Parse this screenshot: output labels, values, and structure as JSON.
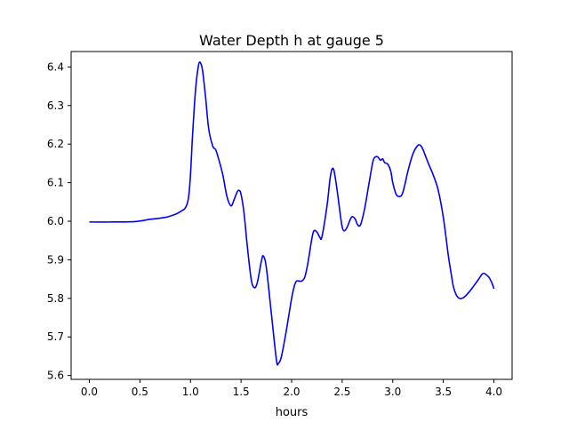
{
  "chart_data": {
    "type": "line",
    "title": "Water Depth h at gauge 5",
    "xlabel": "hours",
    "ylabel": "",
    "xlim": [
      -0.18,
      4.18
    ],
    "ylim": [
      5.59,
      6.44
    ],
    "grid": false,
    "legend": "none",
    "x_ticks": [
      {
        "value": 0.0,
        "label": "0.0"
      },
      {
        "value": 0.5,
        "label": "0.5"
      },
      {
        "value": 1.0,
        "label": "1.0"
      },
      {
        "value": 1.5,
        "label": "1.5"
      },
      {
        "value": 2.0,
        "label": "2.0"
      },
      {
        "value": 2.5,
        "label": "2.5"
      },
      {
        "value": 3.0,
        "label": "3.0"
      },
      {
        "value": 3.5,
        "label": "3.5"
      },
      {
        "value": 4.0,
        "label": "4.0"
      }
    ],
    "y_ticks": [
      {
        "value": 5.6,
        "label": "5.6"
      },
      {
        "value": 5.7,
        "label": "5.7"
      },
      {
        "value": 5.8,
        "label": "5.8"
      },
      {
        "value": 5.9,
        "label": "5.9"
      },
      {
        "value": 6.0,
        "label": "6.0"
      },
      {
        "value": 6.1,
        "label": "6.1"
      },
      {
        "value": 6.2,
        "label": "6.2"
      },
      {
        "value": 6.3,
        "label": "6.3"
      },
      {
        "value": 6.4,
        "label": "6.4"
      }
    ],
    "series": [
      {
        "color": "#0000ff",
        "x": [
          0.0,
          0.2,
          0.45,
          0.6,
          0.75,
          0.85,
          0.9,
          0.95,
          0.98,
          1.0,
          1.02,
          1.05,
          1.08,
          1.1,
          1.12,
          1.15,
          1.18,
          1.22,
          1.25,
          1.28,
          1.32,
          1.36,
          1.4,
          1.43,
          1.46,
          1.48,
          1.5,
          1.53,
          1.56,
          1.6,
          1.63,
          1.66,
          1.7,
          1.72,
          1.75,
          1.8,
          1.85,
          1.87,
          1.9,
          1.95,
          2.0,
          2.03,
          2.05,
          2.07,
          2.1,
          2.13,
          2.16,
          2.2,
          2.22,
          2.25,
          2.28,
          2.3,
          2.35,
          2.38,
          2.4,
          2.42,
          2.45,
          2.48,
          2.5,
          2.52,
          2.55,
          2.58,
          2.6,
          2.63,
          2.65,
          2.68,
          2.72,
          2.76,
          2.8,
          2.82,
          2.85,
          2.88,
          2.9,
          2.92,
          2.95,
          2.98,
          3.0,
          3.03,
          3.05,
          3.08,
          3.1,
          3.12,
          3.15,
          3.2,
          3.25,
          3.28,
          3.3,
          3.33,
          3.36,
          3.4,
          3.45,
          3.5,
          3.55,
          3.58,
          3.6,
          3.63,
          3.66,
          3.7,
          3.75,
          3.8,
          3.85,
          3.88,
          3.9,
          3.92,
          3.95,
          3.98,
          4.0
        ],
        "y": [
          5.998,
          5.998,
          5.999,
          6.005,
          6.01,
          6.018,
          6.025,
          6.035,
          6.06,
          6.12,
          6.22,
          6.34,
          6.405,
          6.41,
          6.39,
          6.32,
          6.24,
          6.195,
          6.185,
          6.16,
          6.12,
          6.065,
          6.04,
          6.055,
          6.075,
          6.08,
          6.07,
          6.02,
          5.94,
          5.85,
          5.828,
          5.84,
          5.895,
          5.91,
          5.88,
          5.76,
          5.64,
          5.632,
          5.65,
          5.72,
          5.8,
          5.835,
          5.845,
          5.845,
          5.845,
          5.855,
          5.89,
          5.955,
          5.975,
          5.972,
          5.958,
          5.96,
          6.04,
          6.11,
          6.135,
          6.13,
          6.08,
          6.02,
          5.985,
          5.975,
          5.985,
          6.005,
          6.012,
          6.005,
          5.992,
          5.99,
          6.03,
          6.09,
          6.15,
          6.165,
          6.167,
          6.158,
          6.162,
          6.152,
          6.148,
          6.13,
          6.1,
          6.072,
          6.065,
          6.065,
          6.075,
          6.095,
          6.13,
          6.175,
          6.197,
          6.195,
          6.185,
          6.165,
          6.145,
          6.12,
          6.08,
          6.01,
          5.91,
          5.86,
          5.83,
          5.808,
          5.8,
          5.802,
          5.815,
          5.832,
          5.85,
          5.862,
          5.865,
          5.862,
          5.855,
          5.84,
          5.825
        ]
      }
    ]
  }
}
